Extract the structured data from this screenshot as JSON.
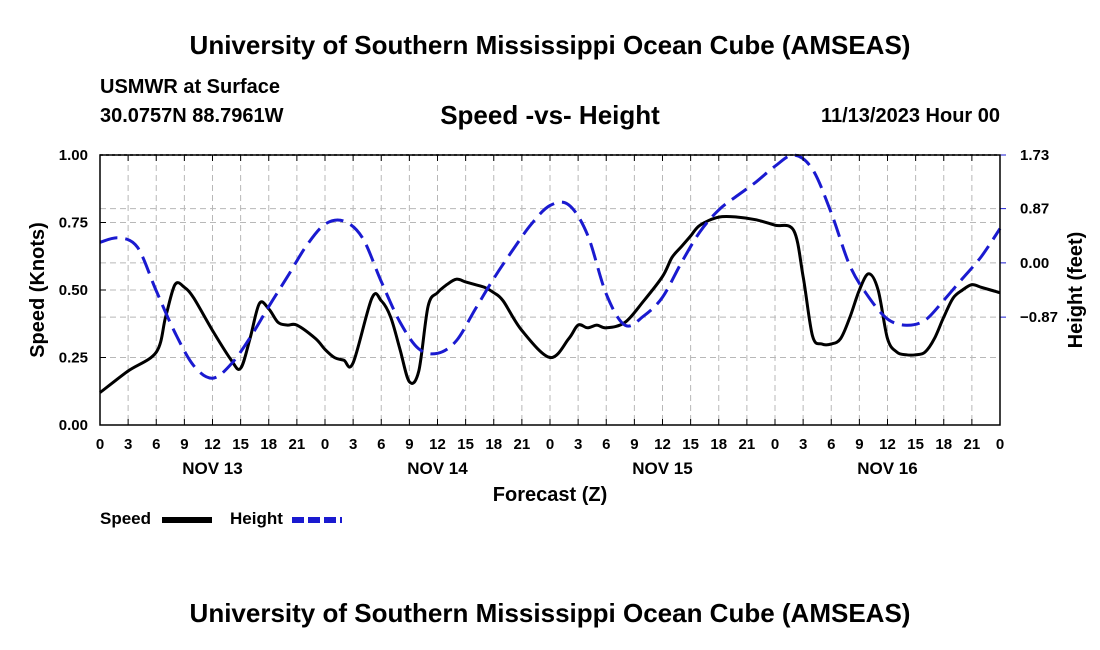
{
  "header": {
    "title": "University of Southern Mississippi Ocean Cube (AMSEAS)",
    "station": "USMWR at Surface",
    "coords": "30.0757N  88.7961W",
    "subtitle": "Speed -vs- Height",
    "datetime": "11/13/2023 Hour 00"
  },
  "footer": {
    "title": "University of Southern Mississippi Ocean Cube (AMSEAS)"
  },
  "legend": {
    "speed_label": "Speed",
    "height_label": "Height"
  },
  "colors": {
    "speed": "#000000",
    "height": "#1a1ad0",
    "grid": "#b8b8b8"
  },
  "chart_data": {
    "type": "line",
    "title": "Speed -vs- Height",
    "xlabel": "Forecast (Z)",
    "ylabel": "Speed (Knots)",
    "y2label": "Height (feet)",
    "xlim": [
      0,
      96
    ],
    "ylim": [
      0,
      1
    ],
    "y2lim": [
      -2.6,
      1.73
    ],
    "grid": true,
    "legend_position": "bottom-left",
    "x_tick_labels": [
      "0",
      "3",
      "6",
      "9",
      "12",
      "15",
      "18",
      "21",
      "0",
      "3",
      "6",
      "9",
      "12",
      "15",
      "18",
      "21",
      "0",
      "3",
      "6",
      "9",
      "12",
      "15",
      "18",
      "21",
      "0",
      "3",
      "6",
      "9",
      "12",
      "15",
      "18",
      "21",
      "0"
    ],
    "day_labels": [
      {
        "hour": 12,
        "label": "NOV 13"
      },
      {
        "hour": 36,
        "label": "NOV 14"
      },
      {
        "hour": 60,
        "label": "NOV 15"
      },
      {
        "hour": 84,
        "label": "NOV 16"
      }
    ],
    "y_ticks": [
      {
        "value": 0.0,
        "label": "0.00"
      },
      {
        "value": 0.25,
        "label": "0.25"
      },
      {
        "value": 0.5,
        "label": "0.50"
      },
      {
        "value": 0.75,
        "label": "0.75"
      },
      {
        "value": 1.0,
        "label": "1.00"
      }
    ],
    "y2_ticks": [
      {
        "value": 1.73,
        "label": "1.73"
      },
      {
        "value": 0.87,
        "label": "0.87"
      },
      {
        "value": 0.0,
        "label": "0.00"
      },
      {
        "value": -0.87,
        "label": "−0.87"
      }
    ],
    "series": [
      {
        "name": "Speed",
        "axis": "left",
        "style": "solid",
        "x": [
          0,
          3,
          6,
          7,
          8,
          9,
          10,
          12,
          14,
          15,
          16,
          17,
          18,
          19,
          20,
          21,
          23,
          24,
          25,
          26,
          27,
          29,
          30,
          31,
          32,
          33,
          34,
          35,
          36,
          37,
          38,
          39,
          40,
          41,
          42,
          43,
          45,
          48,
          50,
          51,
          52,
          53,
          54,
          56,
          58,
          60,
          61,
          62,
          63,
          64,
          66,
          68,
          70,
          72,
          74,
          75,
          76,
          77,
          78,
          79,
          80,
          81,
          82,
          83,
          84,
          85,
          86,
          87,
          88,
          89,
          90,
          91,
          92,
          93,
          94,
          95,
          96
        ],
        "values": [
          0.12,
          0.2,
          0.27,
          0.4,
          0.52,
          0.51,
          0.47,
          0.35,
          0.24,
          0.21,
          0.32,
          0.45,
          0.43,
          0.38,
          0.37,
          0.37,
          0.32,
          0.28,
          0.25,
          0.24,
          0.23,
          0.47,
          0.46,
          0.4,
          0.28,
          0.16,
          0.2,
          0.44,
          0.49,
          0.52,
          0.54,
          0.53,
          0.52,
          0.51,
          0.49,
          0.46,
          0.35,
          0.25,
          0.32,
          0.37,
          0.36,
          0.37,
          0.36,
          0.38,
          0.46,
          0.55,
          0.62,
          0.66,
          0.7,
          0.74,
          0.77,
          0.77,
          0.76,
          0.74,
          0.72,
          0.55,
          0.33,
          0.3,
          0.3,
          0.32,
          0.4,
          0.5,
          0.56,
          0.5,
          0.32,
          0.27,
          0.26,
          0.26,
          0.27,
          0.32,
          0.4,
          0.47,
          0.5,
          0.52,
          0.51,
          0.5,
          0.49
        ]
      },
      {
        "name": "Height",
        "axis": "right",
        "style": "dashed",
        "x": [
          0,
          2,
          4,
          6,
          8,
          10,
          12,
          14,
          16,
          18,
          20,
          22,
          24,
          26,
          28,
          30,
          32,
          34,
          36,
          38,
          40,
          42,
          44,
          46,
          48,
          50,
          52,
          54,
          56,
          58,
          60,
          62,
          64,
          66,
          68,
          70,
          72,
          74,
          76,
          78,
          80,
          82,
          84,
          86,
          88,
          90,
          92,
          94,
          96
        ],
        "values": [
          0.33,
          0.4,
          0.25,
          -0.45,
          -1.12,
          -1.65,
          -1.85,
          -1.62,
          -1.2,
          -0.7,
          -0.22,
          0.27,
          0.62,
          0.67,
          0.4,
          -0.3,
          -0.95,
          -1.38,
          -1.45,
          -1.25,
          -0.75,
          -0.25,
          0.2,
          0.62,
          0.92,
          0.93,
          0.45,
          -0.5,
          -1.0,
          -0.85,
          -0.55,
          0.0,
          0.5,
          0.85,
          1.08,
          1.3,
          1.55,
          1.73,
          1.5,
          0.8,
          -0.05,
          -0.55,
          -0.9,
          -1.0,
          -0.92,
          -0.6,
          -0.25,
          0.1,
          0.55
        ]
      }
    ]
  }
}
